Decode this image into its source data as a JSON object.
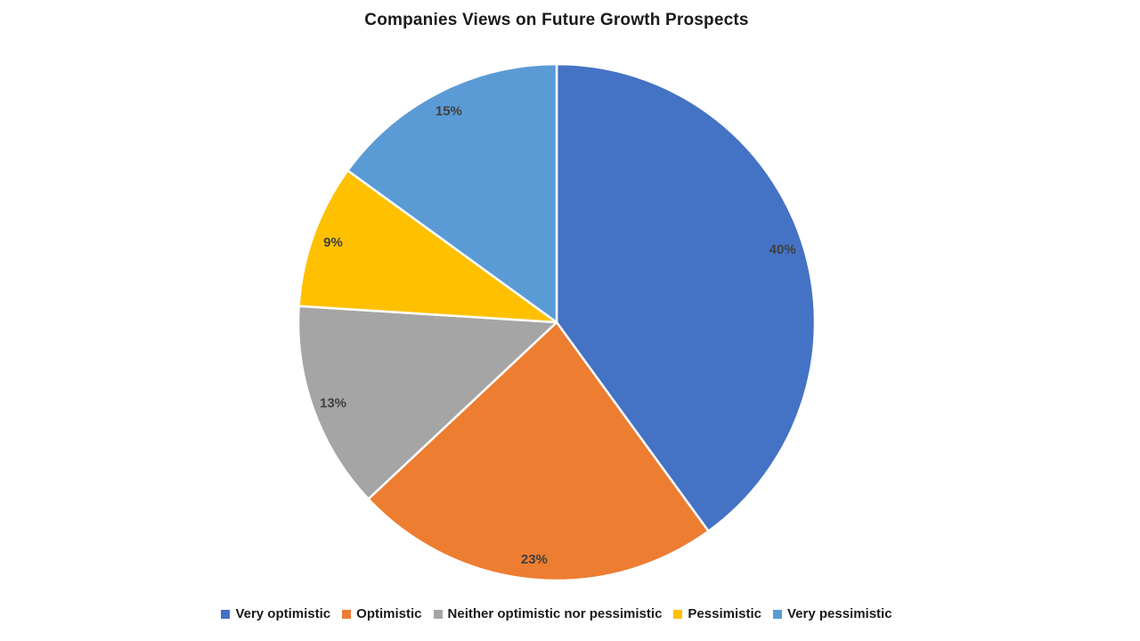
{
  "chart_data": {
    "type": "pie",
    "title": "Companies Views on Future Growth Prospects",
    "series": [
      {
        "label": "Very optimistic",
        "value": 40,
        "data_label": "40%",
        "color": "#4472C4"
      },
      {
        "label": "Optimistic",
        "value": 23,
        "data_label": "23%",
        "color": "#ED7D31"
      },
      {
        "label": "Neither optimistic nor pessimistic",
        "value": 13,
        "data_label": "13%",
        "color": "#A5A5A5"
      },
      {
        "label": "Pessimistic",
        "value": 9,
        "data_label": "9%",
        "color": "#FFC000"
      },
      {
        "label": "Very pessimistic",
        "value": 15,
        "data_label": "15%",
        "color": "#5B9BD5"
      }
    ],
    "start_angle_deg": 0,
    "direction": "clockwise",
    "legend_position": "bottom",
    "slice_border_color": "#FFFFFF",
    "data_label_color": "#3F3F3F",
    "title_color": "#1A1A1A"
  }
}
